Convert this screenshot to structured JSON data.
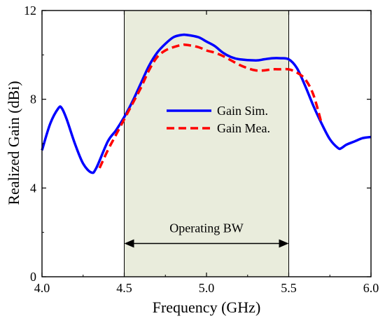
{
  "chart_data": {
    "type": "line",
    "xlabel": "Frequency (GHz)",
    "ylabel": "Realized Gain (dBi)",
    "xlim": [
      4.0,
      6.0
    ],
    "ylim": [
      0,
      12
    ],
    "xticks": [
      "4.0",
      "4.5",
      "5.0",
      "5.5",
      "6.0"
    ],
    "yticks": [
      "0",
      "4",
      "8",
      "12"
    ],
    "grid": false,
    "legend_position": "center-right",
    "shaded_band": {
      "x_start": 4.5,
      "x_end": 5.5,
      "color": "#e9ecdc",
      "label": "Operating BW"
    },
    "series": [
      {
        "name": "Gain Sim.",
        "color": "#0000ff",
        "style": "solid",
        "x": [
          4.0,
          4.05,
          4.1,
          4.12,
          4.15,
          4.2,
          4.25,
          4.3,
          4.33,
          4.4,
          4.45,
          4.5,
          4.55,
          4.6,
          4.65,
          4.7,
          4.75,
          4.8,
          4.85,
          4.88,
          4.95,
          5.0,
          5.05,
          5.1,
          5.15,
          5.2,
          5.3,
          5.35,
          5.4,
          5.45,
          5.5,
          5.55,
          5.6,
          5.65,
          5.7,
          5.75,
          5.8,
          5.82,
          5.85,
          5.9,
          5.95,
          6.0
        ],
        "values": [
          5.7,
          6.9,
          7.6,
          7.6,
          7.1,
          6.0,
          5.1,
          4.7,
          4.9,
          6.1,
          6.6,
          7.2,
          7.9,
          8.7,
          9.5,
          10.1,
          10.5,
          10.8,
          10.9,
          10.9,
          10.8,
          10.6,
          10.4,
          10.1,
          9.9,
          9.8,
          9.75,
          9.8,
          9.85,
          9.85,
          9.8,
          9.4,
          8.6,
          7.7,
          6.9,
          6.2,
          5.8,
          5.8,
          5.95,
          6.1,
          6.25,
          6.3
        ]
      },
      {
        "name": "Gain Mea.",
        "color": "#ff0000",
        "style": "dashed",
        "x": [
          4.35,
          4.4,
          4.45,
          4.5,
          4.55,
          4.6,
          4.65,
          4.7,
          4.75,
          4.8,
          4.85,
          4.88,
          4.95,
          5.0,
          5.05,
          5.1,
          5.15,
          5.2,
          5.25,
          5.3,
          5.35,
          5.4,
          5.45,
          5.5,
          5.55,
          5.6,
          5.65,
          5.7
        ],
        "values": [
          4.9,
          5.7,
          6.4,
          7.1,
          7.8,
          8.5,
          9.3,
          9.9,
          10.2,
          10.35,
          10.45,
          10.45,
          10.35,
          10.2,
          10.1,
          9.95,
          9.75,
          9.55,
          9.4,
          9.3,
          9.3,
          9.35,
          9.35,
          9.35,
          9.2,
          8.9,
          8.2,
          6.9
        ]
      }
    ]
  }
}
